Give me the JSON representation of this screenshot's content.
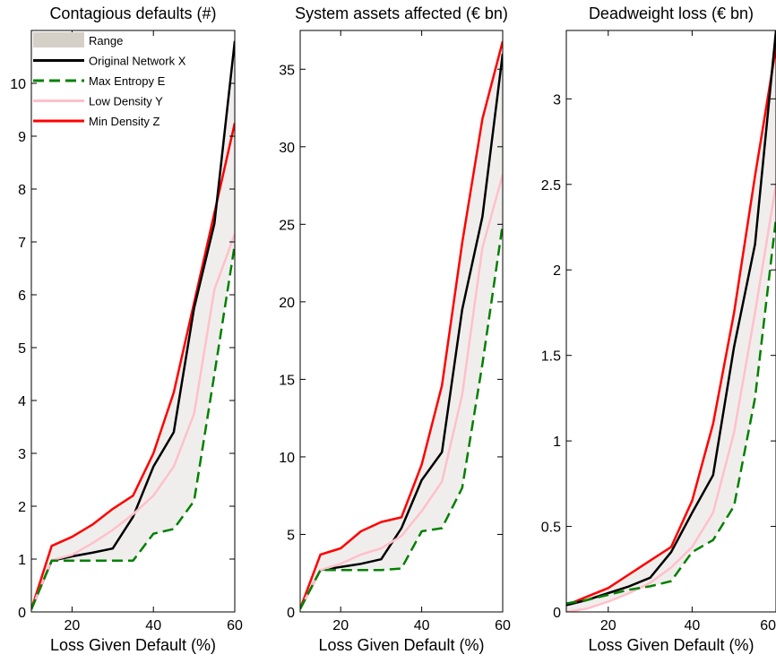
{
  "chart_data": [
    {
      "type": "line",
      "title": "Contagious defaults (#)",
      "xlabel": "Loss Given Default (%)",
      "ylabel": "",
      "xlim": [
        10,
        60
      ],
      "ylim": [
        0,
        11
      ],
      "xticks": [
        20,
        40,
        60
      ],
      "yticks": [
        0,
        1,
        2,
        3,
        4,
        5,
        6,
        7,
        8,
        9,
        10
      ],
      "grid": false,
      "legend": "top-left",
      "legend_entries": [
        {
          "name": "Range",
          "color": "#d4d0c8"
        },
        {
          "name": "Original Network X",
          "color": "#000000"
        },
        {
          "name": "Max Entropy E",
          "color": "#008000",
          "dashed": true
        },
        {
          "name": "Low Density Y",
          "color": "#ffc0cb"
        },
        {
          "name": "Min Density Z",
          "color": "#ff0000"
        }
      ],
      "x": [
        10,
        15,
        20,
        25,
        30,
        35,
        40,
        45,
        50,
        55,
        60
      ],
      "series": [
        {
          "name": "Min Density Z",
          "color": "#ff0000",
          "width": 2.5,
          "values": [
            0.05,
            1.25,
            1.42,
            1.65,
            1.95,
            2.2,
            3.0,
            4.15,
            5.85,
            7.55,
            9.25
          ]
        },
        {
          "name": "Original Network X",
          "color": "#000000",
          "width": 2.5,
          "values": [
            0.05,
            0.97,
            1.05,
            1.12,
            1.2,
            1.8,
            2.75,
            3.4,
            5.75,
            7.35,
            10.8
          ]
        },
        {
          "name": "Low Density Y",
          "color": "#ffc0cb",
          "width": 2.5,
          "values": [
            0.05,
            0.98,
            1.08,
            1.3,
            1.55,
            1.85,
            2.2,
            2.75,
            3.75,
            6.1,
            7.15
          ]
        },
        {
          "name": "Max Entropy E",
          "color": "#008000",
          "width": 2.5,
          "dashed": true,
          "values": [
            0.05,
            0.97,
            0.97,
            0.97,
            0.97,
            0.97,
            1.48,
            1.57,
            2.1,
            4.5,
            6.95
          ]
        }
      ]
    },
    {
      "type": "line",
      "title": "System assets affected (€ bn)",
      "xlabel": "Loss Given Default (%)",
      "ylabel": "",
      "xlim": [
        10,
        60
      ],
      "ylim": [
        0,
        37.5
      ],
      "xticks": [
        20,
        40,
        60
      ],
      "yticks": [
        0,
        5,
        10,
        15,
        20,
        25,
        30,
        35
      ],
      "grid": false,
      "x": [
        10,
        15,
        20,
        25,
        30,
        35,
        40,
        45,
        50,
        55,
        60
      ],
      "series": [
        {
          "name": "Min Density Z",
          "color": "#ff0000",
          "width": 2.5,
          "values": [
            0.2,
            3.7,
            4.1,
            5.2,
            5.8,
            6.1,
            9.5,
            14.6,
            23.8,
            31.8,
            36.8
          ]
        },
        {
          "name": "Original Network X",
          "color": "#000000",
          "width": 2.5,
          "values": [
            0.2,
            2.7,
            2.9,
            3.1,
            3.4,
            5.4,
            8.5,
            10.3,
            19.5,
            25.5,
            36.0
          ]
        },
        {
          "name": "Low Density Y",
          "color": "#ffc0cb",
          "width": 2.5,
          "values": [
            0.2,
            2.7,
            3.1,
            3.7,
            4.1,
            4.9,
            6.5,
            8.4,
            14.0,
            23.5,
            28.2
          ]
        },
        {
          "name": "Max Entropy E",
          "color": "#008000",
          "width": 2.5,
          "dashed": true,
          "values": [
            0.2,
            2.7,
            2.7,
            2.7,
            2.7,
            2.8,
            5.2,
            5.4,
            8.0,
            16.0,
            25.0
          ]
        }
      ]
    },
    {
      "type": "line",
      "title": "Deadweight loss (€ bn)",
      "xlabel": "Loss Given Default (%)",
      "ylabel": "",
      "xlim": [
        10,
        60
      ],
      "ylim": [
        0,
        3.4
      ],
      "xticks": [
        20,
        40,
        60
      ],
      "yticks": [
        0,
        0.5,
        1,
        1.5,
        2,
        2.5,
        3
      ],
      "ytick_labels": [
        "0",
        "0.5",
        "1",
        "1.5",
        "2",
        "2.5",
        "3"
      ],
      "grid": false,
      "x": [
        10,
        15,
        20,
        25,
        30,
        35,
        40,
        45,
        50,
        55,
        60
      ],
      "series": [
        {
          "name": "Min Density Z",
          "color": "#ff0000",
          "width": 2.5,
          "values": [
            0.04,
            0.09,
            0.14,
            0.22,
            0.3,
            0.38,
            0.65,
            1.1,
            1.75,
            2.55,
            3.3
          ]
        },
        {
          "name": "Original Network X",
          "color": "#000000",
          "width": 2.5,
          "values": [
            0.04,
            0.07,
            0.11,
            0.15,
            0.2,
            0.35,
            0.58,
            0.8,
            1.55,
            2.15,
            3.4
          ]
        },
        {
          "name": "Low Density Y",
          "color": "#ffc0cb",
          "width": 2.5,
          "values": [
            0.0,
            0.02,
            0.06,
            0.11,
            0.17,
            0.26,
            0.38,
            0.58,
            1.05,
            1.75,
            2.5
          ]
        },
        {
          "name": "Max Entropy E",
          "color": "#008000",
          "width": 2.5,
          "dashed": true,
          "values": [
            0.05,
            0.07,
            0.1,
            0.13,
            0.15,
            0.18,
            0.35,
            0.42,
            0.62,
            1.25,
            2.3
          ]
        }
      ]
    }
  ]
}
